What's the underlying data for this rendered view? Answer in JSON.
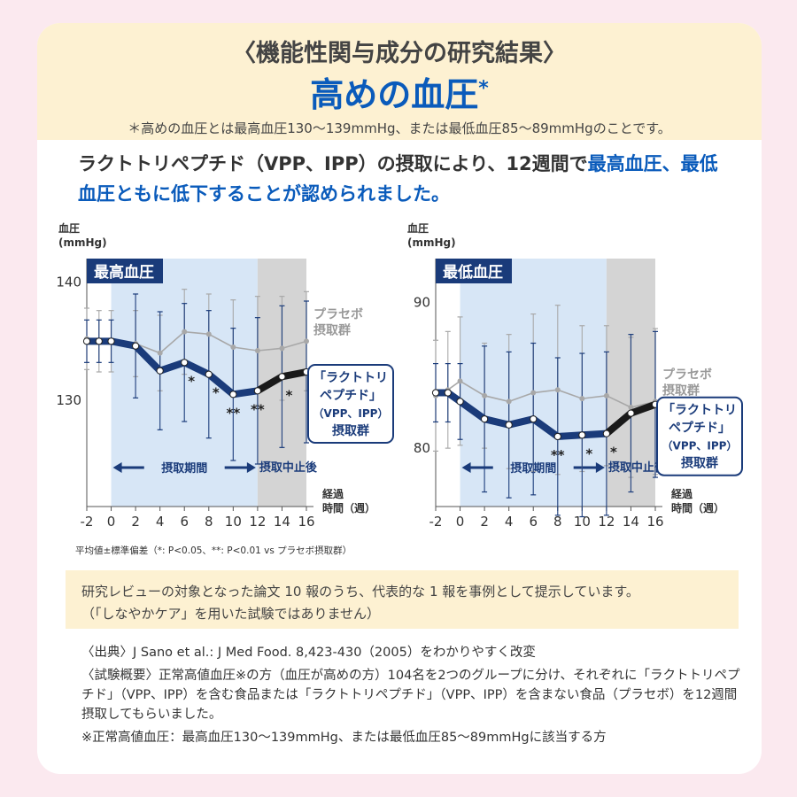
{
  "header": {
    "kicker": "〈機能性関与成分の研究結果〉",
    "title": "高めの血圧",
    "title_mark": "*",
    "note": "＊高めの血圧とは最高血圧130～139mmHg、または最低血圧85～89mmHgのことです。"
  },
  "lead": {
    "part1": "ラクトトリペプチド（VPP、IPP）の摂取により、12週間で",
    "part2": "最高血圧、最低血圧ともに低下することが認められました。"
  },
  "colors": {
    "accent": "#0a5bbb",
    "navy": "#1a3b7a",
    "placebo": "#a8a8a8",
    "intake_bg": "#d7e6f6",
    "stop_bg": "#d4d4d4"
  },
  "chart_data": [
    {
      "type": "line",
      "title": "最高血圧",
      "ylabel": "血圧",
      "yunit": "(mmHg)",
      "xlabel": "経過時間（週）",
      "xlim": [
        -2,
        16
      ],
      "ylim": [
        121,
        142
      ],
      "yticks": [
        130,
        140
      ],
      "xticks": [
        -2,
        0,
        2,
        4,
        6,
        8,
        10,
        12,
        14,
        16
      ],
      "x": [
        -2,
        -1,
        0,
        2,
        4,
        6,
        8,
        10,
        12,
        14,
        16
      ],
      "series": [
        {
          "name": "プラセボ摂取群",
          "values": [
            135.2,
            135.0,
            135.0,
            134.8,
            134.0,
            135.8,
            135.6,
            134.5,
            134.2,
            134.4,
            135.0
          ]
        },
        {
          "name": "「ラクトトリペプチド」(VPP、IPP)摂取群",
          "values": [
            135.0,
            135.0,
            135.0,
            134.6,
            132.5,
            133.2,
            132.2,
            130.5,
            130.8,
            132.0,
            132.4
          ]
        }
      ],
      "errorbars": [
        {
          "series": 0,
          "err": [
            2.6,
            2.6,
            2.6,
            2.8,
            3.2,
            3.6,
            3.4,
            4.0,
            4.6,
            4.4,
            4.2
          ]
        },
        {
          "series": 1,
          "err": [
            1.8,
            1.8,
            1.8,
            4.4,
            5.0,
            5.0,
            5.4,
            5.6,
            6.2,
            6.0,
            6.0
          ]
        }
      ],
      "significance": [
        {
          "x": 6,
          "mark": "*"
        },
        {
          "x": 8,
          "mark": "*"
        },
        {
          "x": 10,
          "mark": "**"
        },
        {
          "x": 12,
          "mark": "**"
        },
        {
          "x": 14,
          "mark": "*"
        },
        {
          "x": 16,
          "mark": "*"
        }
      ],
      "periods": {
        "intake": "摂取期間",
        "after_stop": "摂取中止後"
      },
      "labels": {
        "placebo": [
          "プラセボ",
          "摂取群"
        ],
        "lacto": [
          "「ラクトトリ",
          "ペプチド」",
          "（VPP、IPP）",
          "摂取群"
        ]
      }
    },
    {
      "type": "line",
      "title": "最低血圧",
      "ylabel": "血圧",
      "yunit": "(mmHg)",
      "xlabel": "経過時間（週）",
      "xlim": [
        -2,
        16
      ],
      "ylim": [
        76,
        93
      ],
      "yticks": [
        80,
        90
      ],
      "xticks": [
        -2,
        0,
        2,
        4,
        6,
        8,
        10,
        12,
        14,
        16
      ],
      "x": [
        -2,
        -1,
        0,
        2,
        4,
        6,
        8,
        10,
        12,
        14,
        16
      ],
      "series": [
        {
          "name": "プラセボ摂取群",
          "values": [
            83.6,
            84.0,
            84.6,
            83.6,
            83.2,
            83.8,
            84.0,
            83.4,
            83.6,
            82.8,
            83.2
          ]
        },
        {
          "name": "「ラクトトリペプチド」(VPP、IPP)摂取群",
          "values": [
            83.8,
            83.8,
            83.2,
            82.0,
            81.6,
            82.0,
            80.8,
            80.9,
            81.0,
            82.4,
            83.0
          ]
        }
      ],
      "errorbars": [
        {
          "series": 0,
          "err": [
            3.8,
            4.0,
            4.4,
            3.6,
            4.6,
            5.4,
            5.8,
            5.0,
            4.8,
            4.8,
            5.0
          ]
        },
        {
          "series": 1,
          "err": [
            2.0,
            2.0,
            2.6,
            5.0,
            5.0,
            5.2,
            5.4,
            5.6,
            5.6,
            5.4,
            5.0
          ]
        }
      ],
      "significance": [
        {
          "x": 8,
          "mark": "**"
        },
        {
          "x": 10,
          "mark": "*"
        },
        {
          "x": 12,
          "mark": "*"
        }
      ],
      "periods": {
        "intake": "摂取期間",
        "after_stop": "摂取中止後"
      },
      "labels": {
        "placebo": [
          "プラセボ",
          "摂取群"
        ],
        "lacto": [
          "「ラクトトリ",
          "ペプチド」",
          "（VPP、IPP）",
          "摂取群"
        ]
      }
    }
  ],
  "footnote": "平均値±標準偏差（*: P<0.05、**: P<0.01 vs プラセボ摂取群）",
  "review": {
    "line1": "研究レビューの対象となった論文 10 報のうち、代表的な 1 報を事例として提示しています。",
    "line2": "（「しなやかケア」を用いた試験ではありません）"
  },
  "sources": {
    "citation": "〈出典〉J Sano et al.: J Med Food. 8,423-430（2005）をわかりやすく改変",
    "overview": "〈試験概要〉正常高値血圧※の方（血圧が高めの方）104名を2つのグループに分け、それぞれに「ラクトトリペプチド」（VPP、IPP）を含む食品または「ラクトトリペプチド」（VPP、IPP）を含まない食品（プラセボ）を12週間摂取してもらいました。",
    "definition": "※正常高値血圧：最高血圧130～139mmHg、または最低血圧85～89mmHgに該当する方"
  }
}
